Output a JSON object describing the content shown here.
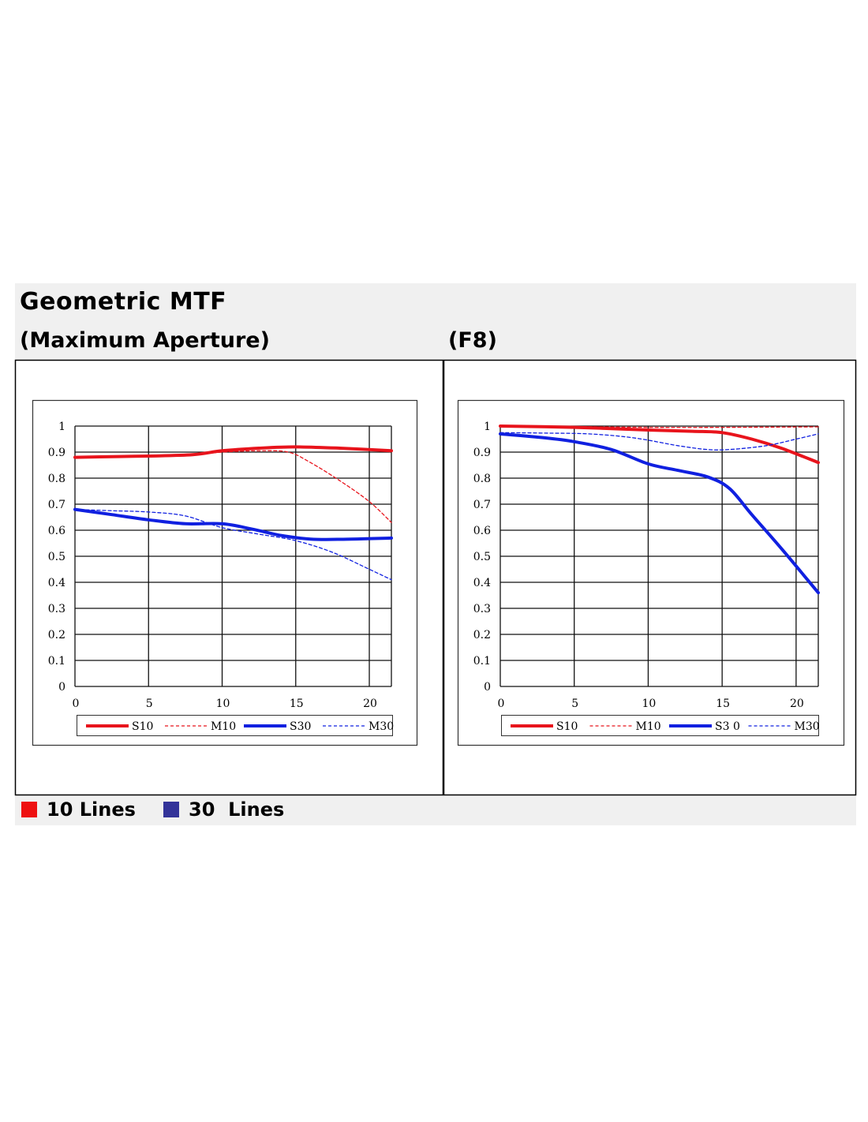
{
  "title": "Geometric MTF",
  "legend_bottom": [
    {
      "label": "10 Lines",
      "color": "#ee1111"
    },
    {
      "label": "30  Lines",
      "color": "#333399"
    }
  ],
  "chart_data": [
    {
      "type": "line",
      "title": "(Maximum Aperture)",
      "xlim": [
        0,
        21.5
      ],
      "ylim": [
        0,
        1
      ],
      "xticks": [
        "0",
        "5",
        "10",
        "15",
        "20"
      ],
      "yticks": [
        "0",
        "0.1",
        "0.2",
        "0.3",
        "0.4",
        "0.5",
        "0.6",
        "0.7",
        "0.8",
        "0.9",
        "1"
      ],
      "grid": true,
      "legend_position": "bottom",
      "series": [
        {
          "name": "S10",
          "color": "#e8141c",
          "style": "solid",
          "points": [
            [
              0,
              0.88
            ],
            [
              3,
              0.883
            ],
            [
              5,
              0.885
            ],
            [
              8,
              0.89
            ],
            [
              10,
              0.905
            ],
            [
              12.5,
              0.915
            ],
            [
              15,
              0.92
            ],
            [
              18,
              0.915
            ],
            [
              21.5,
              0.905
            ]
          ]
        },
        {
          "name": "M10",
          "color": "#e8141c",
          "style": "dashed",
          "points": [
            [
              0,
              0.88
            ],
            [
              3,
              0.883
            ],
            [
              5,
              0.885
            ],
            [
              8,
              0.89
            ],
            [
              10,
              0.9
            ],
            [
              12.5,
              0.905
            ],
            [
              14.5,
              0.9
            ],
            [
              16,
              0.86
            ],
            [
              18,
              0.79
            ],
            [
              20,
              0.71
            ],
            [
              21.5,
              0.63
            ]
          ]
        },
        {
          "name": "S30",
          "color": "#1020e0",
          "style": "solid",
          "points": [
            [
              0,
              0.68
            ],
            [
              2.5,
              0.66
            ],
            [
              5,
              0.64
            ],
            [
              7.5,
              0.625
            ],
            [
              10,
              0.625
            ],
            [
              12,
              0.605
            ],
            [
              14,
              0.58
            ],
            [
              16,
              0.566
            ],
            [
              18,
              0.565
            ],
            [
              21.5,
              0.57
            ]
          ]
        },
        {
          "name": "M30",
          "color": "#1020e0",
          "style": "dashed",
          "points": [
            [
              0,
              0.68
            ],
            [
              2.5,
              0.675
            ],
            [
              5,
              0.67
            ],
            [
              7.5,
              0.655
            ],
            [
              10,
              0.61
            ],
            [
              12.5,
              0.585
            ],
            [
              15,
              0.56
            ],
            [
              17.5,
              0.515
            ],
            [
              20,
              0.45
            ],
            [
              21.5,
              0.41
            ]
          ]
        }
      ]
    },
    {
      "type": "line",
      "title": "(F8)",
      "xlim": [
        0,
        21.5
      ],
      "ylim": [
        0,
        1
      ],
      "xticks": [
        "0",
        "5",
        "10",
        "15",
        "20"
      ],
      "yticks": [
        "0",
        "0.1",
        "0.2",
        "0.3",
        "0.4",
        "0.5",
        "0.6",
        "0.7",
        "0.8",
        "0.9",
        "1"
      ],
      "grid": true,
      "legend_position": "bottom",
      "series": [
        {
          "name": "S10",
          "color": "#e8141c",
          "style": "solid",
          "points": [
            [
              0,
              1.0
            ],
            [
              5,
              0.995
            ],
            [
              10,
              0.985
            ],
            [
              13,
              0.98
            ],
            [
              15,
              0.975
            ],
            [
              17,
              0.95
            ],
            [
              19,
              0.915
            ],
            [
              21.5,
              0.86
            ]
          ]
        },
        {
          "name": "M10",
          "color": "#e8141c",
          "style": "dashed",
          "points": [
            [
              0,
              1.0
            ],
            [
              5,
              0.998
            ],
            [
              10,
              0.995
            ],
            [
              15,
              0.995
            ],
            [
              21.5,
              0.997
            ]
          ]
        },
        {
          "name": "S3 0",
          "color": "#1020e0",
          "style": "solid",
          "points": [
            [
              0,
              0.97
            ],
            [
              3,
              0.955
            ],
            [
              5,
              0.94
            ],
            [
              7.5,
              0.91
            ],
            [
              10,
              0.855
            ],
            [
              12,
              0.83
            ],
            [
              14,
              0.805
            ],
            [
              15.5,
              0.76
            ],
            [
              17,
              0.66
            ],
            [
              19,
              0.53
            ],
            [
              21.5,
              0.36
            ]
          ]
        },
        {
          "name": "M30",
          "color": "#1020e0",
          "style": "dashed",
          "points": [
            [
              0,
              0.975
            ],
            [
              3,
              0.973
            ],
            [
              6,
              0.97
            ],
            [
              9,
              0.955
            ],
            [
              12,
              0.925
            ],
            [
              14,
              0.91
            ],
            [
              15.5,
              0.91
            ],
            [
              18,
              0.925
            ],
            [
              20,
              0.95
            ],
            [
              21.5,
              0.97
            ]
          ]
        }
      ]
    }
  ]
}
